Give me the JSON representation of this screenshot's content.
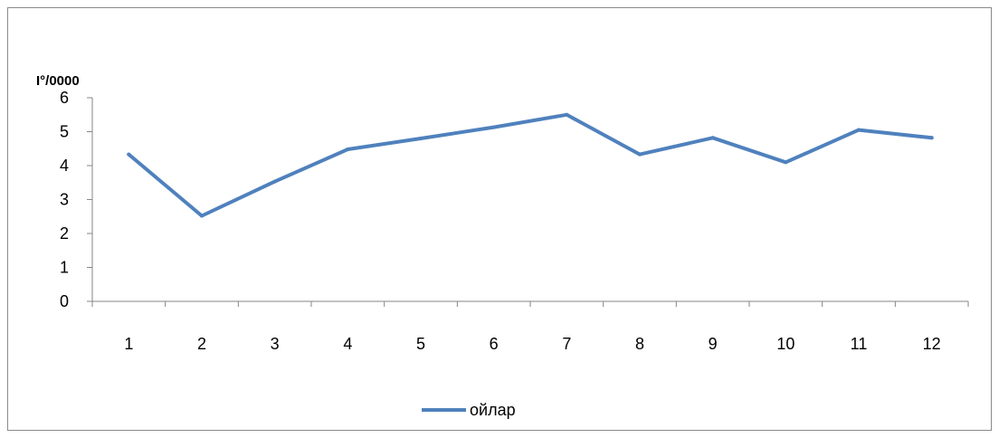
{
  "chart_data": {
    "type": "line",
    "title": "",
    "xlabel": "",
    "ylabel": "I°/0000",
    "categories": [
      "1",
      "2",
      "3",
      "4",
      "5",
      "6",
      "7",
      "8",
      "9",
      "10",
      "11",
      "12"
    ],
    "ylim": [
      0,
      6
    ],
    "yticks": [
      "0",
      "1",
      "2",
      "3",
      "4",
      "5",
      "6"
    ],
    "grid": false,
    "legend": "bottom-center",
    "series": [
      {
        "name": "ойлар",
        "color": "#4f81bd",
        "values": [
          4.33,
          2.52,
          3.53,
          4.48,
          4.8,
          5.13,
          5.5,
          4.33,
          4.82,
          4.1,
          5.05,
          4.82
        ]
      }
    ]
  }
}
